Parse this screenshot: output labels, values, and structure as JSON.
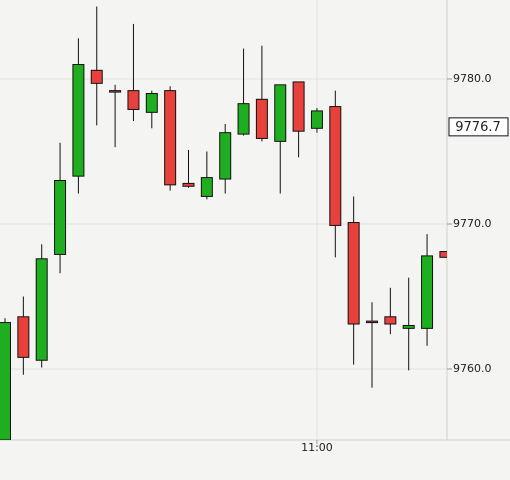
{
  "chart_data": {
    "type": "candlestick",
    "categories": [
      null,
      null,
      null,
      null,
      null,
      null,
      null,
      null,
      null,
      null,
      null,
      null,
      null,
      null,
      null,
      null,
      null,
      "11:00",
      null,
      null,
      null,
      null,
      null,
      null,
      null
    ],
    "open": [
      9755.1,
      9763.6,
      9760.6,
      9767.9,
      9773.3,
      9780.6,
      9779.2,
      9779.2,
      9777.7,
      9779.2,
      9772.8,
      9771.9,
      9773.1,
      9776.2,
      9778.6,
      9775.7,
      9779.8,
      9776.6,
      9778.1,
      9770.1,
      9763.3,
      9763.6,
      9762.8,
      9762.8,
      9768.1
    ],
    "high": [
      9763.5,
      9765.0,
      9768.6,
      9775.6,
      9782.8,
      9785.0,
      9779.6,
      9783.8,
      9779.2,
      9779.5,
      9775.1,
      9775.0,
      9776.9,
      9782.1,
      9782.3,
      9779.6,
      9779.8,
      9778.0,
      9779.2,
      9771.9,
      9764.6,
      9765.6,
      9766.3,
      9769.3,
      9768.1
    ],
    "low": [
      9754.8,
      9759.6,
      9760.1,
      9766.6,
      9772.1,
      9776.8,
      9775.3,
      9777.1,
      9776.6,
      9772.3,
      9772.5,
      9771.7,
      9772.1,
      9776.1,
      9775.7,
      9772.1,
      9774.6,
      9776.3,
      9767.7,
      9760.3,
      9758.7,
      9762.4,
      9759.9,
      9761.6,
      9767.7
    ],
    "close": [
      9763.2,
      9760.8,
      9767.6,
      9773.0,
      9781.0,
      9779.7,
      9779.1,
      9777.9,
      9779.0,
      9772.7,
      9772.6,
      9773.2,
      9776.3,
      9778.3,
      9775.9,
      9779.6,
      9776.4,
      9777.8,
      9769.9,
      9763.1,
      9763.2,
      9763.1,
      9763.0,
      9767.8,
      9767.7
    ],
    "up_color": "#1fae1f",
    "down_color": "#e8403b",
    "ylim": [
      9755.1,
      9785.45
    ],
    "yticks": [
      {
        "value": 9760,
        "label": "9760.0"
      },
      {
        "value": 9770,
        "label": "9770.0"
      },
      {
        "value": 9780,
        "label": "9780.0"
      }
    ],
    "current_price": 9776.7,
    "grid": true
  }
}
